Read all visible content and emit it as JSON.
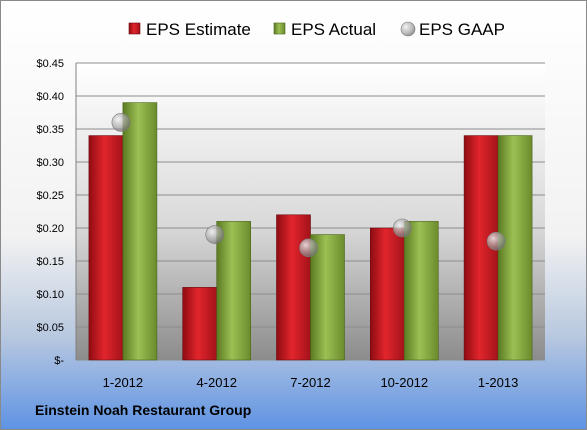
{
  "footer": {
    "company": "Einstein Noah Restaurant Group"
  },
  "colors": {
    "estimate": "#c8161e",
    "actual": "#7fa13c",
    "gaap": "#a6a6a6"
  },
  "chart_data": {
    "type": "bar",
    "categories": [
      "1-2012",
      "4-2012",
      "7-2012",
      "10-2012",
      "1-2013"
    ],
    "series": [
      {
        "name": "EPS Estimate",
        "values": [
          0.34,
          0.11,
          0.22,
          0.2,
          0.34
        ]
      },
      {
        "name": "EPS Actual",
        "values": [
          0.39,
          0.21,
          0.19,
          0.21,
          0.34
        ]
      },
      {
        "name": "EPS GAAP",
        "values": [
          0.36,
          0.19,
          0.17,
          0.2,
          0.18
        ],
        "style": "markers"
      }
    ],
    "yticks": [
      "$-",
      "$0.05",
      "$0.10",
      "$0.15",
      "$0.20",
      "$0.25",
      "$0.30",
      "$0.35",
      "$0.40",
      "$0.45"
    ],
    "ylim": [
      0,
      0.45
    ],
    "grid": true,
    "legend": "top"
  }
}
